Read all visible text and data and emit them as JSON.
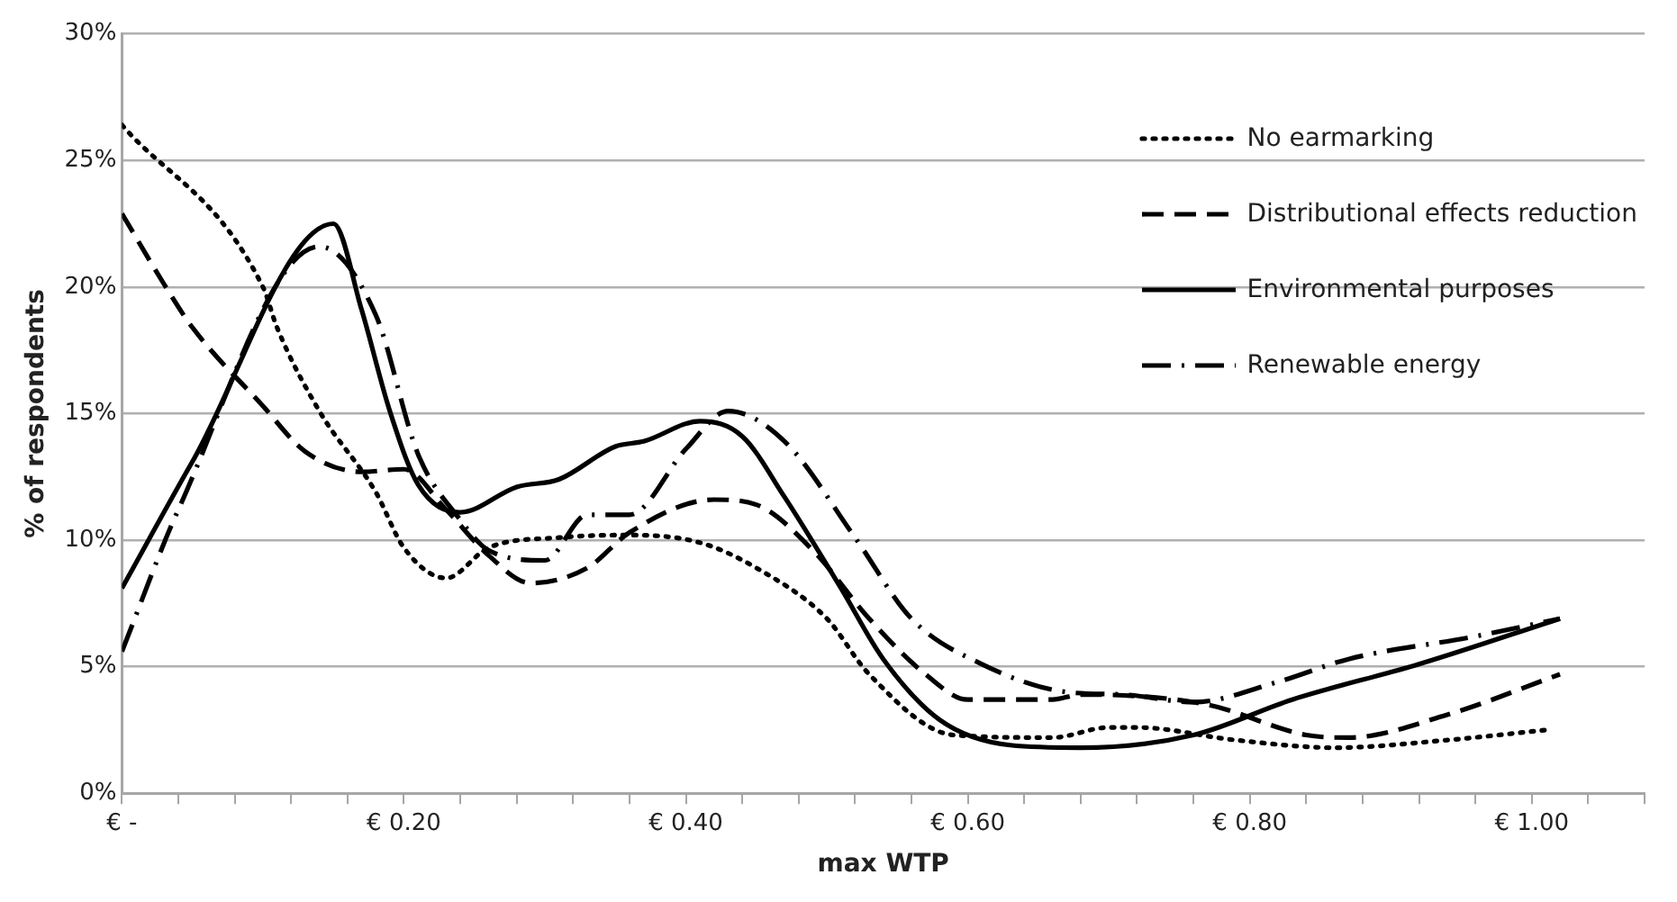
{
  "chart_data": {
    "type": "line",
    "xlabel": "max WTP",
    "ylabel": "% of respondents",
    "xlim": [
      0,
      1.08
    ],
    "xticks": [
      {
        "value": 0,
        "label": "€ -"
      },
      {
        "value": 0.04,
        "label": null
      },
      {
        "value": 0.08,
        "label": null
      },
      {
        "value": 0.12,
        "label": null
      },
      {
        "value": 0.16,
        "label": null
      },
      {
        "value": 0.2,
        "label": "€ 0.20"
      },
      {
        "value": 0.24,
        "label": null
      },
      {
        "value": 0.28,
        "label": null
      },
      {
        "value": 0.32,
        "label": null
      },
      {
        "value": 0.36,
        "label": null
      },
      {
        "value": 0.4,
        "label": "€ 0.40"
      },
      {
        "value": 0.44,
        "label": null
      },
      {
        "value": 0.48,
        "label": null
      },
      {
        "value": 0.52,
        "label": null
      },
      {
        "value": 0.56,
        "label": null
      },
      {
        "value": 0.6,
        "label": "€ 0.60"
      },
      {
        "value": 0.64,
        "label": null
      },
      {
        "value": 0.68,
        "label": null
      },
      {
        "value": 0.72,
        "label": null
      },
      {
        "value": 0.76,
        "label": null
      },
      {
        "value": 0.8,
        "label": "€ 0.80"
      },
      {
        "value": 0.84,
        "label": null
      },
      {
        "value": 0.88,
        "label": null
      },
      {
        "value": 0.92,
        "label": null
      },
      {
        "value": 0.96,
        "label": null
      },
      {
        "value": 1,
        "label": "€ 1.00"
      },
      {
        "value": 1.04,
        "label": null
      },
      {
        "value": 1.08,
        "label": null
      }
    ],
    "ylim": [
      0,
      30
    ],
    "yticks": [
      {
        "value": 0,
        "label": "0%"
      },
      {
        "value": 5,
        "label": "5%"
      },
      {
        "value": 10,
        "label": "10%"
      },
      {
        "value": 15,
        "label": "15%"
      },
      {
        "value": 20,
        "label": "20%"
      },
      {
        "value": 25,
        "label": "25%"
      },
      {
        "value": 30,
        "label": "30%"
      }
    ],
    "grid": "y",
    "legend": "top right",
    "marker": "none",
    "series": [
      {
        "name": "No earmarking",
        "color": "#000000",
        "line_style": "dotted",
        "x": [
          0,
          0.1,
          0.11,
          0.14,
          0.18,
          0.2,
          0.23,
          0.26,
          0.31,
          0.36,
          0.41,
          0.45,
          0.5,
          0.53,
          0.59,
          0.66,
          0.7,
          0.72,
          0.79,
          0.86,
          0.94,
          1.01
        ],
        "values": [
          26.4,
          20,
          18.4,
          15.1,
          11.9,
          9.7,
          8.5,
          9.7,
          10.1,
          10.2,
          9.9,
          8.9,
          6.9,
          4.7,
          2.3,
          2.2,
          2.6,
          2.6,
          2.1,
          1.8,
          2.1,
          2.5
        ]
      },
      {
        "name": "Distributional effects reduction",
        "color": "#000000",
        "line_style": "dashed",
        "x": [
          0,
          0.03,
          0.05,
          0.1,
          0.13,
          0.17,
          0.2,
          0.23,
          0.26,
          0.29,
          0.33,
          0.36,
          0.42,
          0.45,
          0.49,
          0.53,
          0.57,
          0.6,
          0.66,
          0.68,
          0.77,
          0.84,
          0.87,
          0.94,
          1.02
        ],
        "values": [
          22.9,
          20.1,
          18.4,
          15.3,
          13.5,
          12.7,
          12.8,
          11.2,
          9.4,
          8.3,
          8.9,
          10.3,
          11.6,
          11.4,
          9.6,
          6.9,
          4.7,
          3.7,
          3.7,
          3.9,
          3.5,
          2.3,
          2.2,
          3.1,
          4.7
        ]
      },
      {
        "name": "Environmental purposes",
        "color": "#000000",
        "line_style": "solid",
        "x": [
          0,
          0.05,
          0.15,
          0.17,
          0.19,
          0.21,
          0.24,
          0.28,
          0.31,
          0.35,
          0.37,
          0.41,
          0.44,
          0.47,
          0.51,
          0.54,
          0.58,
          0.63,
          0.68,
          0.76,
          0.83,
          0.92,
          1.02
        ],
        "values": [
          8.1,
          13.1,
          22.5,
          19.1,
          15.1,
          12.2,
          11.1,
          12.1,
          12.4,
          13.7,
          13.9,
          14.7,
          14.1,
          11.7,
          8.1,
          5.3,
          2.9,
          1.9,
          1.8,
          2.3,
          3.7,
          5.1,
          6.9
        ]
      },
      {
        "name": "Renewable energy",
        "color": "#000000",
        "line_style": "dashdot",
        "x": [
          0,
          0.04,
          0.14,
          0.18,
          0.21,
          0.24,
          0.26,
          0.3,
          0.33,
          0.36,
          0.4,
          0.43,
          0.47,
          0.52,
          0.56,
          0.61,
          0.67,
          0.71,
          0.76,
          0.82,
          0.87,
          0.96,
          1.02
        ],
        "values": [
          5.6,
          11.2,
          21.6,
          18.9,
          13.4,
          10.8,
          9.6,
          9.2,
          11,
          11,
          13.6,
          15.1,
          13.9,
          10.1,
          6.9,
          5.1,
          4,
          3.9,
          3.6,
          4.4,
          5.3,
          6.2,
          6.9
        ]
      }
    ]
  }
}
